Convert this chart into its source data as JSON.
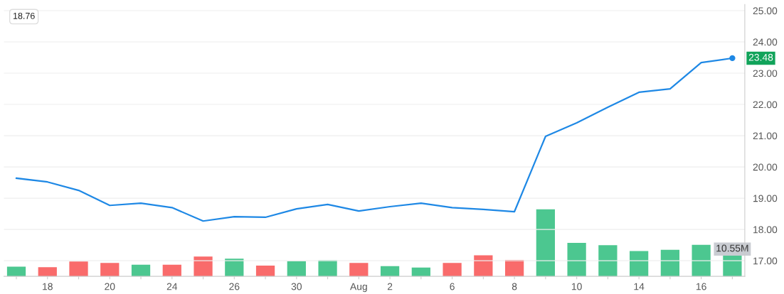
{
  "chart_data": [
    {
      "type": "line",
      "categories": [
        null,
        "18",
        null,
        "20",
        null,
        "24",
        null,
        "26",
        null,
        "30",
        null,
        "Aug",
        "2",
        null,
        "6",
        null,
        "8",
        null,
        "10",
        null,
        "14",
        null,
        "16",
        null
      ],
      "series": [
        {
          "color": "#1e88e5",
          "values": [
            19.64,
            19.52,
            19.25,
            18.77,
            18.84,
            18.7,
            18.27,
            18.41,
            18.39,
            18.66,
            18.8,
            18.59,
            18.73,
            18.84,
            18.7,
            18.64,
            18.57,
            20.98,
            21.41,
            21.91,
            22.39,
            22.5,
            23.34,
            23.48
          ],
          "value_labels": [
            null,
            null,
            null,
            null,
            null,
            null,
            null,
            null,
            null,
            null,
            null,
            null,
            null,
            null,
            null,
            null,
            null,
            null,
            null,
            null,
            null,
            null,
            null,
            "23.48"
          ]
        }
      ],
      "ylim": [
        16.5,
        25.2
      ],
      "yticks": [
        {
          "value": 17,
          "label": "17.00"
        },
        {
          "value": 18,
          "label": "18.00"
        },
        {
          "value": 19,
          "label": "19.00"
        },
        {
          "value": 20,
          "label": "20.00"
        },
        {
          "value": 21,
          "label": "21.00"
        },
        {
          "value": 22,
          "label": "22.00"
        },
        {
          "value": 23,
          "label": "23.00"
        },
        {
          "value": 24,
          "label": "24.00"
        },
        {
          "value": 25,
          "label": "25.00"
        }
      ],
      "grid": "y",
      "annotations": [
        "18.76"
      ]
    },
    {
      "type": "bar",
      "tick_labels": false,
      "categories": [
        null,
        null,
        null,
        null,
        null,
        null,
        null,
        null,
        null,
        null,
        null,
        null,
        null,
        null,
        null,
        null,
        null,
        null,
        null,
        null,
        null,
        null,
        null,
        null
      ],
      "values": [
        4.8,
        4.5,
        7.3,
        6.6,
        5.7,
        5.7,
        9.7,
        8.7,
        5.3,
        7.5,
        7.9,
        6.6,
        5.0,
        4.3,
        6.6,
        10.3,
        8.1,
        33.0,
        16.4,
        15.3,
        12.4,
        13.0,
        15.5,
        10.55
      ],
      "colors": [
        "#4cc790",
        "#f96b6b",
        "#f96b6b",
        "#f96b6b",
        "#4cc790",
        "#f96b6b",
        "#f96b6b",
        "#4cc790",
        "#f96b6b",
        "#4cc790",
        "#4cc790",
        "#f96b6b",
        "#4cc790",
        "#4cc790",
        "#f96b6b",
        "#f96b6b",
        "#f96b6b",
        "#4cc790",
        "#4cc790",
        "#4cc790",
        "#4cc790",
        "#4cc790",
        "#4cc790",
        "#4cc790"
      ],
      "value_labels": [
        null,
        null,
        null,
        null,
        null,
        null,
        null,
        null,
        null,
        null,
        null,
        null,
        null,
        null,
        null,
        null,
        null,
        null,
        null,
        null,
        null,
        null,
        null,
        "10.55M"
      ]
    }
  ]
}
